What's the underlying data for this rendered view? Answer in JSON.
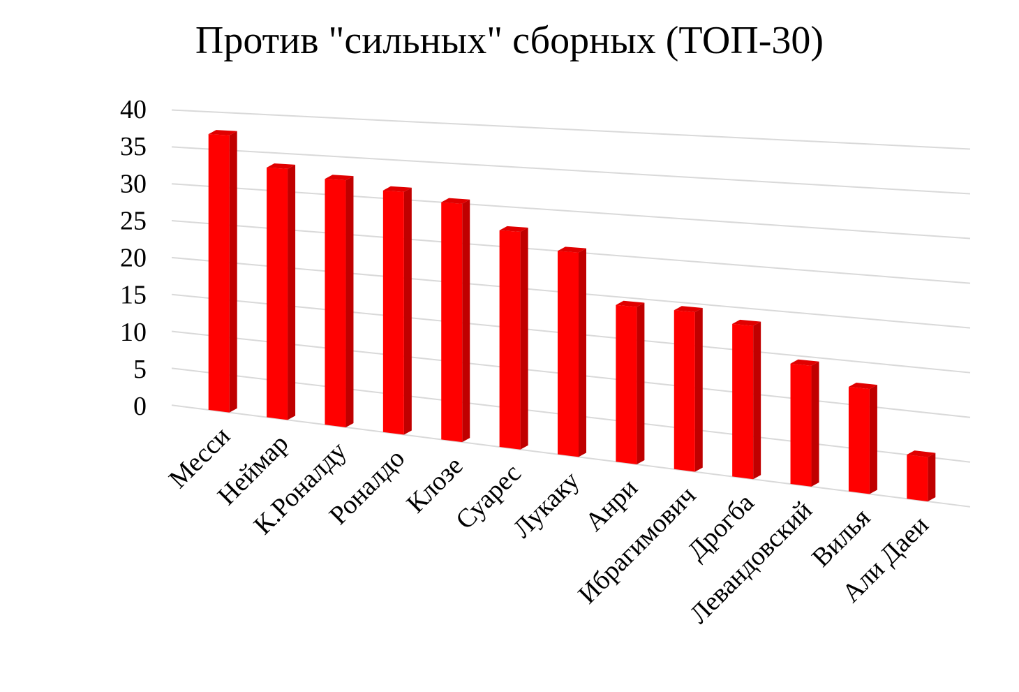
{
  "chart_data": {
    "type": "bar",
    "title": "Против \"сильных\" сборных (ТОП-30)",
    "xlabel": "",
    "ylabel": "",
    "categories": [
      "Месси",
      "Неймар",
      "К.Роналду",
      "Роналдо",
      "Клозе",
      "Суарес",
      "Лукаку",
      "Анри",
      "Ибрагимович",
      "Дрогба",
      "Левандовский",
      "Вилья",
      "Али Даеи"
    ],
    "values": [
      37,
      33,
      32,
      31,
      30,
      27,
      25,
      19,
      19,
      18,
      14,
      12,
      5
    ],
    "ylim": [
      0,
      40
    ],
    "yticks": [
      0,
      5,
      10,
      15,
      20,
      25,
      30,
      35,
      40
    ],
    "grid": true,
    "legend": "none",
    "bar_color": "#ff0000",
    "bar_side_color": "#c00000",
    "bar_top_color": "#e00000"
  }
}
